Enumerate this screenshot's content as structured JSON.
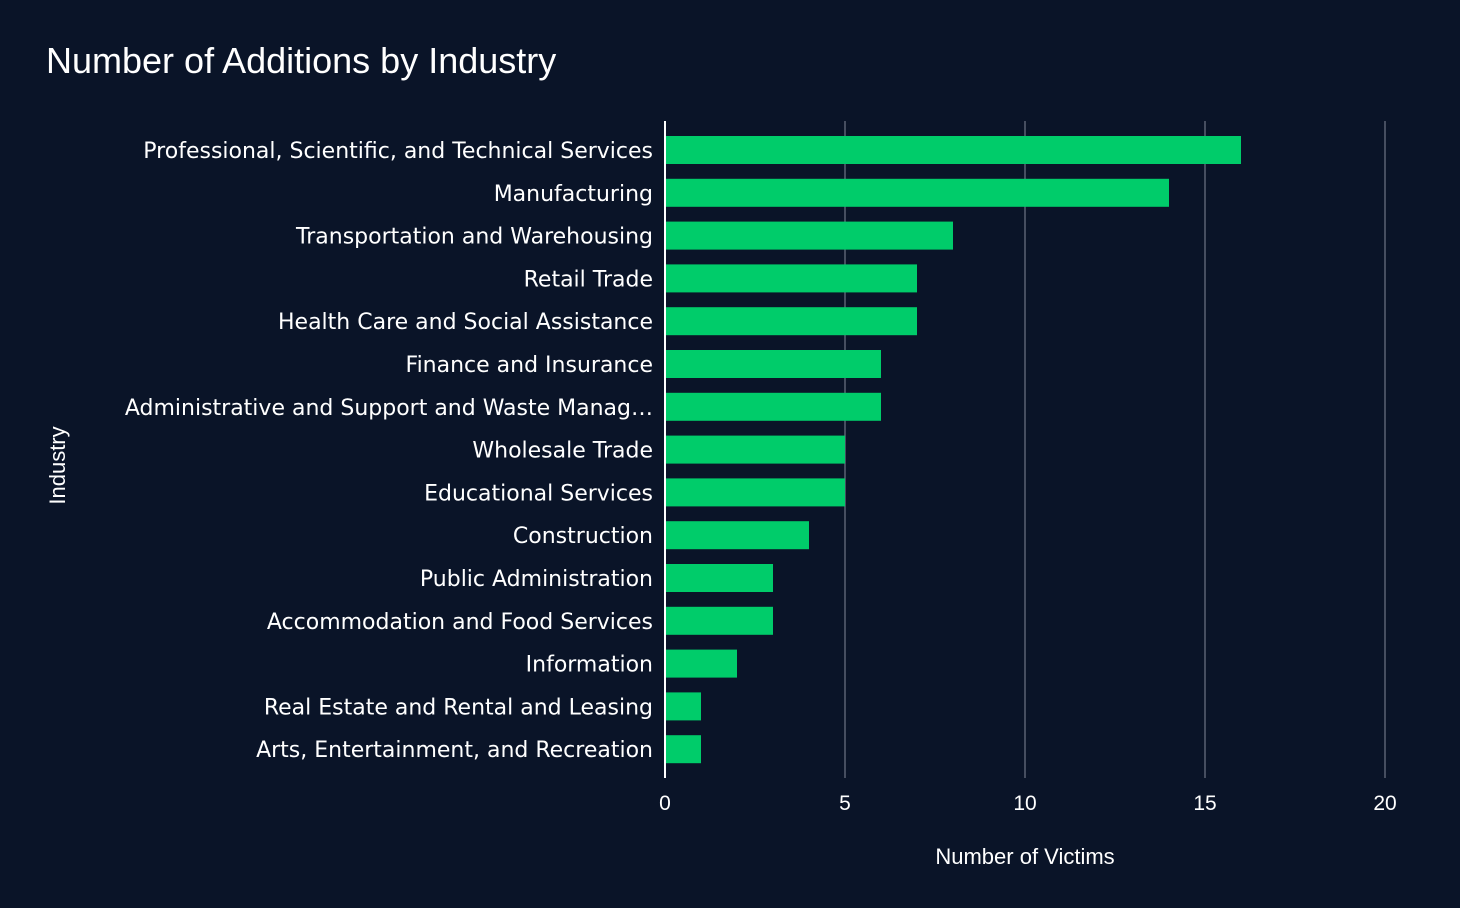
{
  "chart_data": {
    "type": "bar",
    "orientation": "horizontal",
    "title": "Number of Additions by Industry",
    "xlabel": "Number of Victims",
    "ylabel": "Industry",
    "xlim": [
      0,
      20
    ],
    "xticks": [
      0,
      5,
      10,
      15,
      20
    ],
    "grid": true,
    "bar_color": "#00cc6a",
    "categories": [
      "Professional, Scientific, and Technical Services",
      "Manufacturing",
      "Transportation and Warehousing",
      "Retail Trade",
      "Health Care and Social Assistance",
      "Finance and Insurance",
      "Administrative and Support and Waste Manag…",
      "Wholesale Trade",
      "Educational Services",
      "Construction",
      "Public Administration",
      "Accommodation and Food Services",
      "Information",
      "Real Estate and Rental and Leasing",
      "Arts, Entertainment, and Recreation"
    ],
    "values": [
      16,
      14,
      8,
      7,
      7,
      6,
      6,
      5,
      5,
      4,
      3,
      3,
      2,
      1,
      1
    ]
  },
  "colors": {
    "background": "#0a1428",
    "gridline": "#5a6272",
    "axis_line": "#ffffff",
    "text": "#ffffff"
  }
}
